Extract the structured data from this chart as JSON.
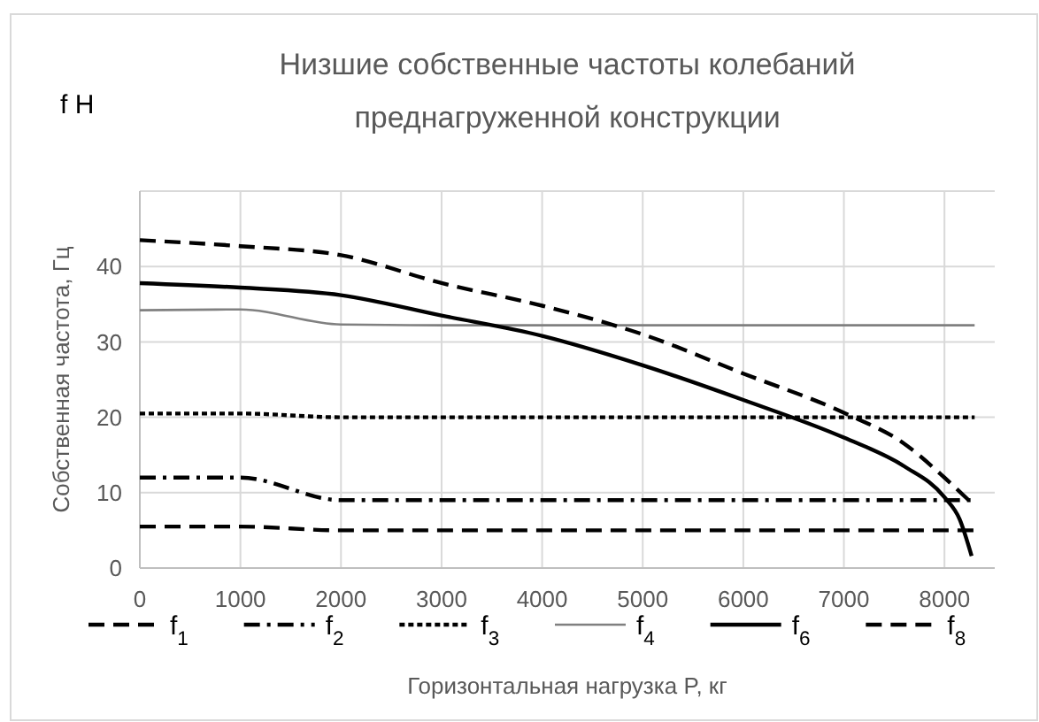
{
  "chart_data": {
    "type": "line",
    "title": "Низшие собственные частоты колебаний преднагруженной конструкции",
    "xlabel": "Горизонтальная нагрузка P, кг",
    "ylabel": "Собственная частота, Гц",
    "annotations": [
      "f H"
    ],
    "xlim": [
      0,
      8500
    ],
    "xticks": [
      0,
      1000,
      2000,
      3000,
      4000,
      5000,
      6000,
      7000,
      8000
    ],
    "ylim": [
      0,
      50
    ],
    "yticks": [
      0,
      10,
      20,
      30,
      40,
      {
        "value": 50,
        "label": null
      }
    ],
    "grid": true,
    "legend": "bottom",
    "series": [
      {
        "name": "f$_{1}$",
        "color": "#000000",
        "line_style": "dashed",
        "x": [
          0,
          1000,
          2000,
          3000,
          8300
        ],
        "values": [
          5.5,
          5.5,
          5,
          5,
          5
        ]
      },
      {
        "name": "f$_{2}$",
        "color": "#000000",
        "line_style": "dashdot",
        "x": [
          0,
          1000,
          2000,
          3000,
          8300
        ],
        "values": [
          12,
          12,
          9,
          9,
          9
        ]
      },
      {
        "name": "f$_{3}$",
        "color": "#000000",
        "line_style": "dotted",
        "x": [
          0,
          1000,
          2000,
          3000,
          8300
        ],
        "values": [
          20.5,
          20.5,
          20,
          20,
          20
        ]
      },
      {
        "name": "f$_{4}$",
        "color": "#808080",
        "line_style": "solid",
        "x": [
          0,
          1000,
          2000,
          3000,
          8300
        ],
        "values": [
          34.2,
          34.3,
          32.3,
          32.2,
          32.2
        ]
      },
      {
        "name": "f$_{6}$",
        "color": "#000000",
        "line_style": "solid",
        "x": [
          0,
          1000,
          2000,
          3000,
          4000,
          5000,
          6000,
          7000,
          7600,
          8000,
          8150,
          8270
        ],
        "values": [
          37.8,
          37.2,
          36.2,
          33.5,
          30.8,
          26.9,
          22.3,
          17.3,
          13.5,
          9.4,
          6.5,
          1.6
        ]
      },
      {
        "name": "f$_{8}$",
        "color": "#000000",
        "line_style": "dashed",
        "x": [
          0,
          1000,
          2000,
          3000,
          4000,
          5000,
          6000,
          7000,
          7600,
          8000,
          8280
        ],
        "values": [
          43.5,
          42.7,
          41.5,
          37.8,
          34.8,
          31,
          25.8,
          20.6,
          16.5,
          12,
          8.5
        ]
      }
    ]
  }
}
